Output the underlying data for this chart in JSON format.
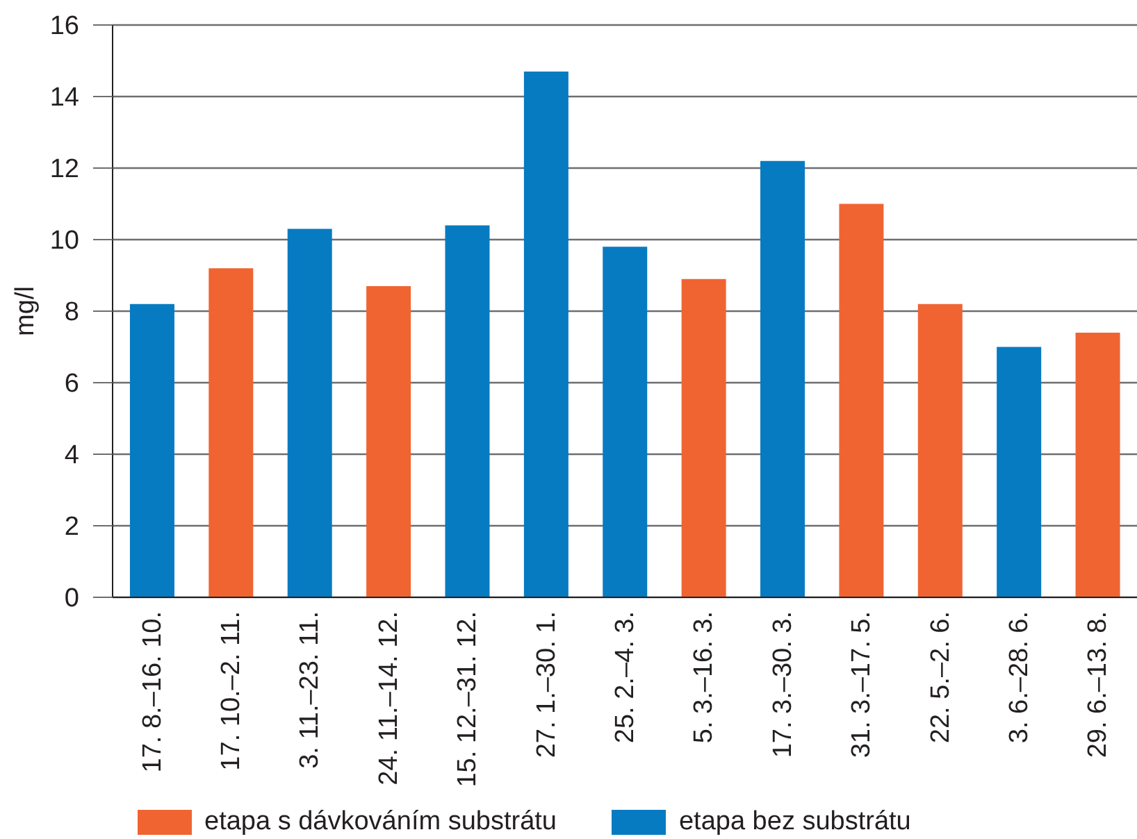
{
  "chart_data": {
    "type": "bar",
    "ylabel": "mg/l",
    "categories": [
      "17. 8.–16. 10.",
      "17. 10.–2. 11.",
      "3. 11.–23. 11.",
      "24. 11.–14. 12.",
      "15. 12.–31. 12.",
      "27. 1.–30. 1.",
      "25. 2.–4. 3.",
      "5. 3.–16. 3.",
      "17. 3.–30. 3.",
      "31. 3.–17. 5.",
      "22. 5.–2. 6.",
      "3. 6.–28. 6.",
      "29. 6.–13. 8."
    ],
    "series": [
      {
        "name": "etapa s dávkováním substrátu",
        "color": "#f06432",
        "values": [
          null,
          9.2,
          null,
          8.7,
          null,
          null,
          null,
          8.9,
          null,
          11.0,
          8.2,
          null,
          7.4
        ]
      },
      {
        "name": "etapa bez substrátu",
        "color": "#077bc1",
        "values": [
          8.2,
          null,
          10.3,
          null,
          10.4,
          14.7,
          9.8,
          null,
          12.2,
          null,
          null,
          7.0,
          null
        ]
      }
    ],
    "stacked": true,
    "ylim": [
      0,
      16
    ],
    "yticks": [
      0,
      2,
      4,
      6,
      8,
      10,
      12,
      14,
      16
    ],
    "grid": "y",
    "legend": "bottom"
  }
}
